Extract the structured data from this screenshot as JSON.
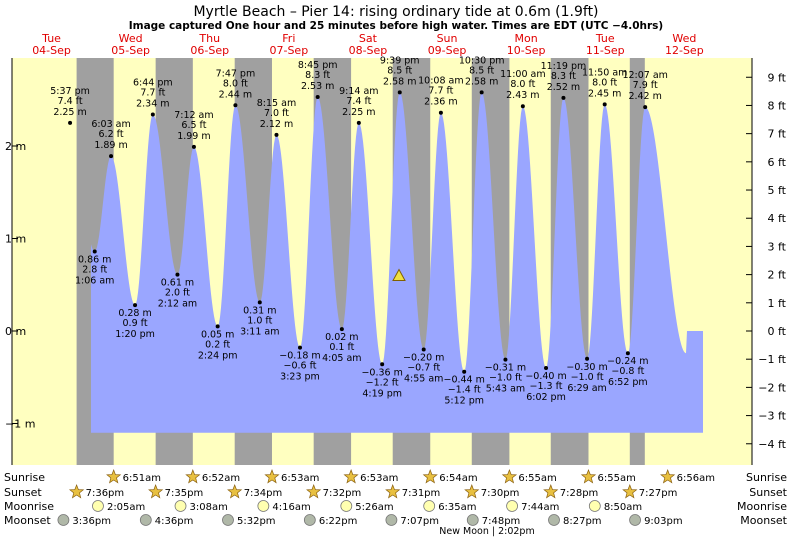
{
  "header": {
    "title": "Myrtle Beach – Pier 14: rising  ordinary tide at 0.6m (1.9ft)",
    "subtitle": "Image captured One hour and 25 minutes before high water. Times are EDT (UTC −4.0hrs)"
  },
  "colors": {
    "day": "#ffffc0",
    "night": "#a0a0a0",
    "water": "#9aa6ff",
    "day_label": "#e00000",
    "text": "#000000",
    "sun_star": "#e8c040",
    "moon_circle": "#ffffb0",
    "moonset_circle": "#b0b8a8"
  },
  "chart_data": {
    "type": "area",
    "title": "Myrtle Beach – Pier 14",
    "unit_left": "m",
    "unit_right": "ft",
    "ylim_m": [
      -1.1,
      3.0
    ],
    "left_ticks": [
      {
        "v": 2,
        "label": "2 m"
      },
      {
        "v": 1,
        "label": "1 m"
      },
      {
        "v": 0,
        "label": "0 m"
      },
      {
        "v": -1,
        "label": "−1 m"
      }
    ],
    "right_ticks": [
      {
        "ft": 9,
        "label": "9 ft"
      },
      {
        "ft": 8,
        "label": "8 ft"
      },
      {
        "ft": 7,
        "label": "7 ft"
      },
      {
        "ft": 6,
        "label": "6 ft"
      },
      {
        "ft": 5,
        "label": "5 ft"
      },
      {
        "ft": 4,
        "label": "4 ft"
      },
      {
        "ft": 3,
        "label": "3 ft"
      },
      {
        "ft": 2,
        "label": "2 ft"
      },
      {
        "ft": 1,
        "label": "1 ft"
      },
      {
        "ft": 0,
        "label": "0 ft"
      },
      {
        "ft": -1,
        "label": "−1 ft"
      },
      {
        "ft": -2,
        "label": "−2 ft"
      },
      {
        "ft": -3,
        "label": "−3 ft"
      },
      {
        "ft": -4,
        "label": "−4 ft"
      }
    ],
    "day_labels": [
      {
        "dow": "Tue",
        "date": "04-Sep",
        "day": 0
      },
      {
        "dow": "Wed",
        "date": "05-Sep",
        "day": 1
      },
      {
        "dow": "Thu",
        "date": "06-Sep",
        "day": 2
      },
      {
        "dow": "Fri",
        "date": "07-Sep",
        "day": 3
      },
      {
        "dow": "Sat",
        "date": "08-Sep",
        "day": 4
      },
      {
        "dow": "Sun",
        "date": "09-Sep",
        "day": 5
      },
      {
        "dow": "Mon",
        "date": "10-Sep",
        "day": 6
      },
      {
        "dow": "Tue",
        "date": "11-Sep",
        "day": 7
      },
      {
        "dow": "Wed",
        "date": "12-Sep",
        "day": 8
      }
    ],
    "nights": [
      {
        "set": 0.8167,
        "rise": 1.2854
      },
      {
        "set": 1.816,
        "rise": 2.2861
      },
      {
        "set": 2.8153,
        "rise": 3.2868
      },
      {
        "set": 3.8139,
        "rise": 4.2868
      },
      {
        "set": 4.8132,
        "rise": 5.2875
      },
      {
        "set": 5.8125,
        "rise": 6.2882
      },
      {
        "set": 6.8111,
        "rise": 7.2882
      },
      {
        "set": 7.8104,
        "rise": 8.0
      }
    ],
    "extremes": [
      {
        "day": 0,
        "time": "5:37 pm",
        "m": "2.25 m",
        "ft": "7.4 ft",
        "v": 2.25,
        "type": "high"
      },
      {
        "day": 1,
        "time": "1:06 am",
        "m": "0.86 m",
        "ft": "2.8 ft",
        "v": 0.86,
        "type": "low"
      },
      {
        "day": 1,
        "time": "6:03 am",
        "m": "1.89 m",
        "ft": "6.2 ft",
        "v": 1.89,
        "type": "high"
      },
      {
        "day": 1,
        "time": "1:20 pm",
        "m": "0.28 m",
        "ft": "0.9 ft",
        "v": 0.28,
        "type": "low"
      },
      {
        "day": 1,
        "time": "6:44 pm",
        "m": "2.34 m",
        "ft": "7.7 ft",
        "v": 2.34,
        "type": "high"
      },
      {
        "day": 2,
        "time": "2:12 am",
        "m": "0.61 m",
        "ft": "2.0 ft",
        "v": 0.61,
        "type": "low"
      },
      {
        "day": 2,
        "time": "7:12 am",
        "m": "1.99 m",
        "ft": "6.5 ft",
        "v": 1.99,
        "type": "high"
      },
      {
        "day": 2,
        "time": "2:24 pm",
        "m": "0.05 m",
        "ft": "0.2 ft",
        "v": 0.05,
        "type": "low"
      },
      {
        "day": 2,
        "time": "7:47 pm",
        "m": "2.44 m",
        "ft": "8.0 ft",
        "v": 2.44,
        "type": "high"
      },
      {
        "day": 3,
        "time": "3:11 am",
        "m": "0.31 m",
        "ft": "1.0 ft",
        "v": 0.31,
        "type": "low"
      },
      {
        "day": 3,
        "time": "8:15 am",
        "m": "2.12 m",
        "ft": "7.0 ft",
        "v": 2.12,
        "type": "high"
      },
      {
        "day": 3,
        "time": "3:23 pm",
        "m": "−0.18 m",
        "ft": "−0.6 ft",
        "v": -0.18,
        "type": "low"
      },
      {
        "day": 3,
        "time": "8:45 pm",
        "m": "2.53 m",
        "ft": "8.3 ft",
        "v": 2.53,
        "type": "high"
      },
      {
        "day": 4,
        "time": "4:05 am",
        "m": "0.02 m",
        "ft": "0.1 ft",
        "v": 0.02,
        "type": "low"
      },
      {
        "day": 4,
        "time": "9:14 am",
        "m": "2.25 m",
        "ft": "7.4 ft",
        "v": 2.25,
        "type": "high"
      },
      {
        "day": 4,
        "time": "4:19 pm",
        "m": "−0.36 m",
        "ft": "−1.2 ft",
        "v": -0.36,
        "type": "low"
      },
      {
        "day": 4,
        "time": "9:39 pm",
        "m": "2.58 m",
        "ft": "8.5 ft",
        "v": 2.58,
        "type": "high"
      },
      {
        "day": 5,
        "time": "4:55 am",
        "m": "−0.20 m",
        "ft": "−0.7 ft",
        "v": -0.2,
        "type": "low"
      },
      {
        "day": 5,
        "time": "10:08 am",
        "m": "2.36 m",
        "ft": "7.7 ft",
        "v": 2.36,
        "type": "high"
      },
      {
        "day": 5,
        "time": "5:12 pm",
        "m": "−0.44 m",
        "ft": "−1.4 ft",
        "v": -0.44,
        "type": "low"
      },
      {
        "day": 5,
        "time": "10:30 pm",
        "m": "2.58 m",
        "ft": "8.5 ft",
        "v": 2.58,
        "type": "high"
      },
      {
        "day": 6,
        "time": "5:43 am",
        "m": "−0.31 m",
        "ft": "−1.0 ft",
        "v": -0.31,
        "type": "low"
      },
      {
        "day": 6,
        "time": "11:00 am",
        "m": "2.43 m",
        "ft": "8.0 ft",
        "v": 2.43,
        "type": "high"
      },
      {
        "day": 6,
        "time": "6:02 pm",
        "m": "−0.40 m",
        "ft": "−1.3 ft",
        "v": -0.4,
        "type": "low"
      },
      {
        "day": 6,
        "time": "11:19 pm",
        "m": "2.52 m",
        "ft": "8.3 ft",
        "v": 2.52,
        "type": "high"
      },
      {
        "day": 7,
        "time": "6:29 am",
        "m": "−0.30 m",
        "ft": "−1.0 ft",
        "v": -0.3,
        "type": "low"
      },
      {
        "day": 7,
        "time": "11:50 am",
        "m": "2.45 m",
        "ft": "8.0 ft",
        "v": 2.45,
        "type": "high"
      },
      {
        "day": 7,
        "time": "6:52 pm",
        "m": "−0.24 m",
        "ft": "−0.8 ft",
        "v": -0.24,
        "type": "low"
      },
      {
        "day": 8,
        "time": "12:07 am",
        "m": "2.42 m",
        "ft": "7.9 ft",
        "v": 2.42,
        "type": "high"
      }
    ],
    "current_marker": {
      "m": 0.6,
      "ft": 1.9,
      "status": "rising"
    }
  },
  "almanac": {
    "row_labels": [
      "Sunrise",
      "Sunset",
      "Moonrise",
      "Moonset"
    ],
    "sunrise": [
      {
        "day": 1,
        "time": "6:51am"
      },
      {
        "day": 2,
        "time": "6:52am"
      },
      {
        "day": 3,
        "time": "6:53am"
      },
      {
        "day": 4,
        "time": "6:53am"
      },
      {
        "day": 5,
        "time": "6:54am"
      },
      {
        "day": 6,
        "time": "6:55am"
      },
      {
        "day": 7,
        "time": "6:55am"
      },
      {
        "day": 8,
        "time": "6:56am"
      }
    ],
    "sunset": [
      {
        "day": 0,
        "time": "7:36pm"
      },
      {
        "day": 1,
        "time": "7:35pm"
      },
      {
        "day": 2,
        "time": "7:34pm"
      },
      {
        "day": 3,
        "time": "7:32pm"
      },
      {
        "day": 4,
        "time": "7:31pm"
      },
      {
        "day": 5,
        "time": "7:30pm"
      },
      {
        "day": 6,
        "time": "7:28pm"
      },
      {
        "day": 7,
        "time": "7:27pm"
      }
    ],
    "moonrise": [
      {
        "day": 1,
        "time": "2:05am"
      },
      {
        "day": 2,
        "time": "3:08am"
      },
      {
        "day": 3,
        "time": "4:16am"
      },
      {
        "day": 4,
        "time": "5:26am"
      },
      {
        "day": 5,
        "time": "6:35am"
      },
      {
        "day": 6,
        "time": "7:44am"
      },
      {
        "day": 7,
        "time": "8:50am"
      }
    ],
    "moonset": [
      {
        "day": 0,
        "time": "3:36pm"
      },
      {
        "day": 1,
        "time": "4:36pm"
      },
      {
        "day": 2,
        "time": "5:32pm"
      },
      {
        "day": 3,
        "time": "6:22pm"
      },
      {
        "day": 4,
        "time": "7:07pm"
      },
      {
        "day": 5,
        "time": "7:48pm"
      },
      {
        "day": 6,
        "time": "8:27pm"
      },
      {
        "day": 7,
        "time": "9:03pm"
      }
    ],
    "moon_phase_note": "New Moon | 2:02pm"
  }
}
